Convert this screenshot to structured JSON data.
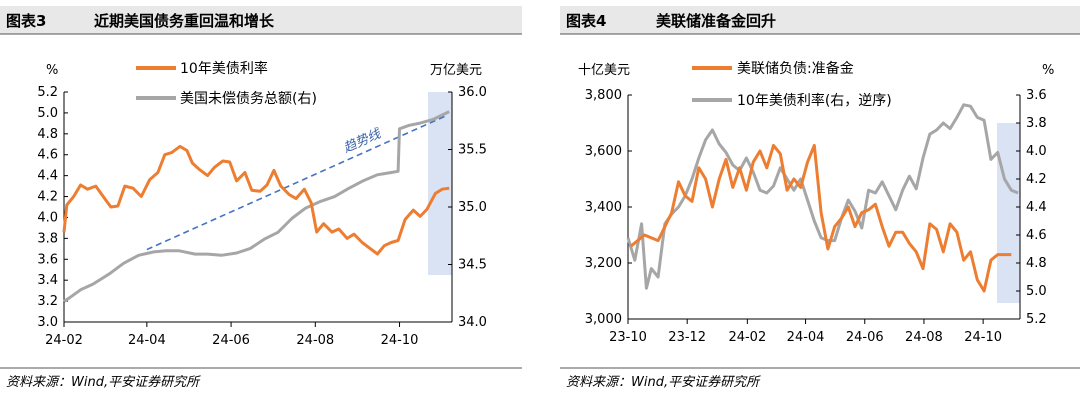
{
  "chart_data": [
    {
      "type": "line",
      "figure_label": "图表3",
      "title": "近期美国债务重回温和增长",
      "source": "资料来源：Wind,平安证券研究所",
      "left_unit": "%",
      "right_unit": "万亿美元",
      "ylim_left": [
        3.0,
        5.2
      ],
      "yticks_left": [
        "3.0",
        "3.2",
        "3.4",
        "3.6",
        "3.8",
        "4.0",
        "4.2",
        "4.4",
        "4.6",
        "4.8",
        "5.0",
        "5.2"
      ],
      "ylim_right": [
        34.0,
        36.0
      ],
      "yticks_right": [
        "34.0",
        "34.5",
        "35.0",
        "35.5",
        "36.0"
      ],
      "xlim": [
        "2024-02-01",
        "2024-11-08"
      ],
      "xticks": [
        {
          "label": "24-02",
          "date": "2024-02-01"
        },
        {
          "label": "24-04",
          "date": "2024-04-01"
        },
        {
          "label": "24-06",
          "date": "2024-06-01"
        },
        {
          "label": "24-08",
          "date": "2024-08-01"
        },
        {
          "label": "24-10",
          "date": "2024-10-01"
        }
      ],
      "annotation": {
        "text": "趋势线",
        "from": [
          "2024-04-01",
          34.63
        ],
        "to": [
          "2024-11-05",
          35.8
        ]
      },
      "highlight": {
        "from": "2024-10-11",
        "to": "2024-11-08"
      },
      "series": [
        {
          "name": "10年美债利率",
          "axis": "left",
          "color": "#ed7d31",
          "points": [
            [
              "2024-02-01",
              3.86
            ],
            [
              "2024-02-03",
              4.12
            ],
            [
              "2024-02-08",
              4.2
            ],
            [
              "2024-02-13",
              4.31
            ],
            [
              "2024-02-18",
              4.27
            ],
            [
              "2024-02-24",
              4.3
            ],
            [
              "2024-03-01",
              4.19
            ],
            [
              "2024-03-06",
              4.1
            ],
            [
              "2024-03-11",
              4.11
            ],
            [
              "2024-03-16",
              4.3
            ],
            [
              "2024-03-22",
              4.28
            ],
            [
              "2024-03-28",
              4.2
            ],
            [
              "2024-04-03",
              4.36
            ],
            [
              "2024-04-09",
              4.43
            ],
            [
              "2024-04-14",
              4.6
            ],
            [
              "2024-04-19",
              4.62
            ],
            [
              "2024-04-25",
              4.68
            ],
            [
              "2024-04-30",
              4.64
            ],
            [
              "2024-05-04",
              4.52
            ],
            [
              "2024-05-09",
              4.46
            ],
            [
              "2024-05-15",
              4.4
            ],
            [
              "2024-05-20",
              4.48
            ],
            [
              "2024-05-26",
              4.54
            ],
            [
              "2024-05-31",
              4.53
            ],
            [
              "2024-06-05",
              4.35
            ],
            [
              "2024-06-11",
              4.43
            ],
            [
              "2024-06-16",
              4.26
            ],
            [
              "2024-06-22",
              4.25
            ],
            [
              "2024-06-27",
              4.31
            ],
            [
              "2024-07-02",
              4.45
            ],
            [
              "2024-07-07",
              4.3
            ],
            [
              "2024-07-13",
              4.22
            ],
            [
              "2024-07-18",
              4.18
            ],
            [
              "2024-07-24",
              4.27
            ],
            [
              "2024-07-29",
              4.14
            ],
            [
              "2024-08-02",
              3.86
            ],
            [
              "2024-08-07",
              3.94
            ],
            [
              "2024-08-13",
              3.86
            ],
            [
              "2024-08-18",
              3.89
            ],
            [
              "2024-08-24",
              3.8
            ],
            [
              "2024-08-29",
              3.84
            ],
            [
              "2024-09-04",
              3.76
            ],
            [
              "2024-09-09",
              3.71
            ],
            [
              "2024-09-15",
              3.65
            ],
            [
              "2024-09-20",
              3.73
            ],
            [
              "2024-09-25",
              3.76
            ],
            [
              "2024-09-30",
              3.78
            ],
            [
              "2024-10-05",
              3.98
            ],
            [
              "2024-10-11",
              4.07
            ],
            [
              "2024-10-16",
              4.01
            ],
            [
              "2024-10-21",
              4.08
            ],
            [
              "2024-10-27",
              4.23
            ],
            [
              "2024-11-01",
              4.27
            ],
            [
              "2024-11-06",
              4.28
            ]
          ]
        },
        {
          "name": "美国未偿债务总额(右)",
          "axis": "right",
          "color": "#a6a6a6",
          "points": [
            [
              "2024-02-01",
              34.18
            ],
            [
              "2024-02-05",
              34.21
            ],
            [
              "2024-02-13",
              34.28
            ],
            [
              "2024-02-22",
              34.33
            ],
            [
              "2024-03-05",
              34.42
            ],
            [
              "2024-03-15",
              34.51
            ],
            [
              "2024-03-26",
              34.58
            ],
            [
              "2024-04-06",
              34.61
            ],
            [
              "2024-04-15",
              34.62
            ],
            [
              "2024-04-24",
              34.62
            ],
            [
              "2024-05-06",
              34.59
            ],
            [
              "2024-05-15",
              34.59
            ],
            [
              "2024-05-25",
              34.58
            ],
            [
              "2024-06-05",
              34.6
            ],
            [
              "2024-06-15",
              34.64
            ],
            [
              "2024-06-25",
              34.72
            ],
            [
              "2024-07-05",
              34.78
            ],
            [
              "2024-07-15",
              34.9
            ],
            [
              "2024-07-25",
              34.99
            ],
            [
              "2024-08-05",
              35.05
            ],
            [
              "2024-08-15",
              35.09
            ],
            [
              "2024-08-25",
              35.16
            ],
            [
              "2024-09-05",
              35.23
            ],
            [
              "2024-09-15",
              35.28
            ],
            [
              "2024-09-25",
              35.3
            ],
            [
              "2024-09-30",
              35.31
            ],
            [
              "2024-10-01",
              35.68
            ],
            [
              "2024-10-08",
              35.71
            ],
            [
              "2024-10-16",
              35.73
            ],
            [
              "2024-10-25",
              35.76
            ],
            [
              "2024-11-01",
              35.8
            ],
            [
              "2024-11-06",
              35.83
            ]
          ]
        }
      ]
    },
    {
      "type": "line",
      "figure_label": "图表4",
      "title": "美联储准备金回升",
      "source": "资料来源：Wind,平安证券研究所",
      "left_unit": "十亿美元",
      "right_unit": "%",
      "ylim_left": [
        3000,
        3800
      ],
      "yticks_left": [
        "3,000",
        "3,200",
        "3,400",
        "3,600",
        "3,800"
      ],
      "ylim_right": [
        5.2,
        3.6
      ],
      "right_reversed": true,
      "yticks_right": [
        "3.6",
        "3.8",
        "4.0",
        "4.2",
        "4.4",
        "4.6",
        "4.8",
        "5.0",
        "5.2"
      ],
      "xlim": [
        "2023-10-01",
        "2024-11-08"
      ],
      "xticks": [
        {
          "label": "23-10",
          "date": "2023-10-01"
        },
        {
          "label": "23-12",
          "date": "2023-12-01"
        },
        {
          "label": "24-02",
          "date": "2024-02-01"
        },
        {
          "label": "24-04",
          "date": "2024-04-01"
        },
        {
          "label": "24-06",
          "date": "2024-06-01"
        },
        {
          "label": "24-08",
          "date": "2024-08-01"
        },
        {
          "label": "24-10",
          "date": "2024-10-01"
        }
      ],
      "highlight": {
        "from": "2024-10-01",
        "to": "2024-11-08"
      },
      "series": [
        {
          "name": "美联储负债:准备金",
          "axis": "left",
          "color": "#ed7d31",
          "points": [
            [
              "2023-10-04",
              3260
            ],
            [
              "2023-10-18",
              3300
            ],
            [
              "2023-11-01",
              3280
            ],
            [
              "2023-11-15",
              3380
            ],
            [
              "2023-11-22",
              3490
            ],
            [
              "2023-11-29",
              3440
            ],
            [
              "2023-12-06",
              3420
            ],
            [
              "2023-12-13",
              3540
            ],
            [
              "2023-12-20",
              3500
            ],
            [
              "2023-12-27",
              3400
            ],
            [
              "2024-01-03",
              3500
            ],
            [
              "2024-01-10",
              3570
            ],
            [
              "2024-01-17",
              3470
            ],
            [
              "2024-01-24",
              3540
            ],
            [
              "2024-01-31",
              3460
            ],
            [
              "2024-02-07",
              3560
            ],
            [
              "2024-02-14",
              3600
            ],
            [
              "2024-02-21",
              3540
            ],
            [
              "2024-02-28",
              3620
            ],
            [
              "2024-03-06",
              3590
            ],
            [
              "2024-03-13",
              3460
            ],
            [
              "2024-03-20",
              3500
            ],
            [
              "2024-03-27",
              3470
            ],
            [
              "2024-04-03",
              3560
            ],
            [
              "2024-04-10",
              3620
            ],
            [
              "2024-04-17",
              3380
            ],
            [
              "2024-04-24",
              3250
            ],
            [
              "2024-05-01",
              3330
            ],
            [
              "2024-05-08",
              3360
            ],
            [
              "2024-05-15",
              3400
            ],
            [
              "2024-05-22",
              3330
            ],
            [
              "2024-05-29",
              3380
            ],
            [
              "2024-06-05",
              3390
            ],
            [
              "2024-06-12",
              3410
            ],
            [
              "2024-06-19",
              3330
            ],
            [
              "2024-06-26",
              3260
            ],
            [
              "2024-07-03",
              3310
            ],
            [
              "2024-07-10",
              3310
            ],
            [
              "2024-07-17",
              3270
            ],
            [
              "2024-07-24",
              3240
            ],
            [
              "2024-07-31",
              3180
            ],
            [
              "2024-08-07",
              3340
            ],
            [
              "2024-08-14",
              3320
            ],
            [
              "2024-08-21",
              3240
            ],
            [
              "2024-08-28",
              3340
            ],
            [
              "2024-09-04",
              3310
            ],
            [
              "2024-09-11",
              3210
            ],
            [
              "2024-09-18",
              3240
            ],
            [
              "2024-09-25",
              3140
            ],
            [
              "2024-10-02",
              3100
            ],
            [
              "2024-10-09",
              3210
            ],
            [
              "2024-10-16",
              3230
            ],
            [
              "2024-10-23",
              3230
            ],
            [
              "2024-10-30",
              3230
            ]
          ]
        },
        {
          "name": "10年美债利率(右，逆序)",
          "axis": "right",
          "color": "#a6a6a6",
          "points": [
            [
              "2023-10-01",
              4.62
            ],
            [
              "2023-10-08",
              4.78
            ],
            [
              "2023-10-15",
              4.52
            ],
            [
              "2023-10-20",
              4.98
            ],
            [
              "2023-10-25",
              4.84
            ],
            [
              "2023-11-01",
              4.9
            ],
            [
              "2023-11-08",
              4.52
            ],
            [
              "2023-11-15",
              4.45
            ],
            [
              "2023-11-22",
              4.4
            ],
            [
              "2023-11-29",
              4.32
            ],
            [
              "2023-12-06",
              4.2
            ],
            [
              "2023-12-13",
              4.05
            ],
            [
              "2023-12-20",
              3.92
            ],
            [
              "2023-12-27",
              3.85
            ],
            [
              "2024-01-03",
              3.95
            ],
            [
              "2024-01-10",
              4.01
            ],
            [
              "2024-01-17",
              4.1
            ],
            [
              "2024-01-24",
              4.14
            ],
            [
              "2024-01-31",
              4.05
            ],
            [
              "2024-02-07",
              4.15
            ],
            [
              "2024-02-14",
              4.28
            ],
            [
              "2024-02-21",
              4.3
            ],
            [
              "2024-02-28",
              4.25
            ],
            [
              "2024-03-06",
              4.12
            ],
            [
              "2024-03-13",
              4.2
            ],
            [
              "2024-03-20",
              4.28
            ],
            [
              "2024-03-27",
              4.2
            ],
            [
              "2024-04-03",
              4.35
            ],
            [
              "2024-04-10",
              4.5
            ],
            [
              "2024-04-17",
              4.62
            ],
            [
              "2024-04-24",
              4.64
            ],
            [
              "2024-05-01",
              4.64
            ],
            [
              "2024-05-08",
              4.48
            ],
            [
              "2024-05-15",
              4.35
            ],
            [
              "2024-05-22",
              4.43
            ],
            [
              "2024-05-29",
              4.55
            ],
            [
              "2024-06-05",
              4.28
            ],
            [
              "2024-06-12",
              4.3
            ],
            [
              "2024-06-19",
              4.22
            ],
            [
              "2024-06-26",
              4.32
            ],
            [
              "2024-07-03",
              4.42
            ],
            [
              "2024-07-10",
              4.28
            ],
            [
              "2024-07-17",
              4.18
            ],
            [
              "2024-07-24",
              4.27
            ],
            [
              "2024-07-31",
              4.05
            ],
            [
              "2024-08-07",
              3.88
            ],
            [
              "2024-08-14",
              3.85
            ],
            [
              "2024-08-21",
              3.8
            ],
            [
              "2024-08-28",
              3.84
            ],
            [
              "2024-09-04",
              3.76
            ],
            [
              "2024-09-11",
              3.67
            ],
            [
              "2024-09-18",
              3.68
            ],
            [
              "2024-09-25",
              3.76
            ],
            [
              "2024-10-02",
              3.78
            ],
            [
              "2024-10-09",
              4.06
            ],
            [
              "2024-10-16",
              4.01
            ],
            [
              "2024-10-23",
              4.2
            ],
            [
              "2024-10-30",
              4.28
            ],
            [
              "2024-11-06",
              4.3
            ]
          ]
        }
      ]
    }
  ]
}
